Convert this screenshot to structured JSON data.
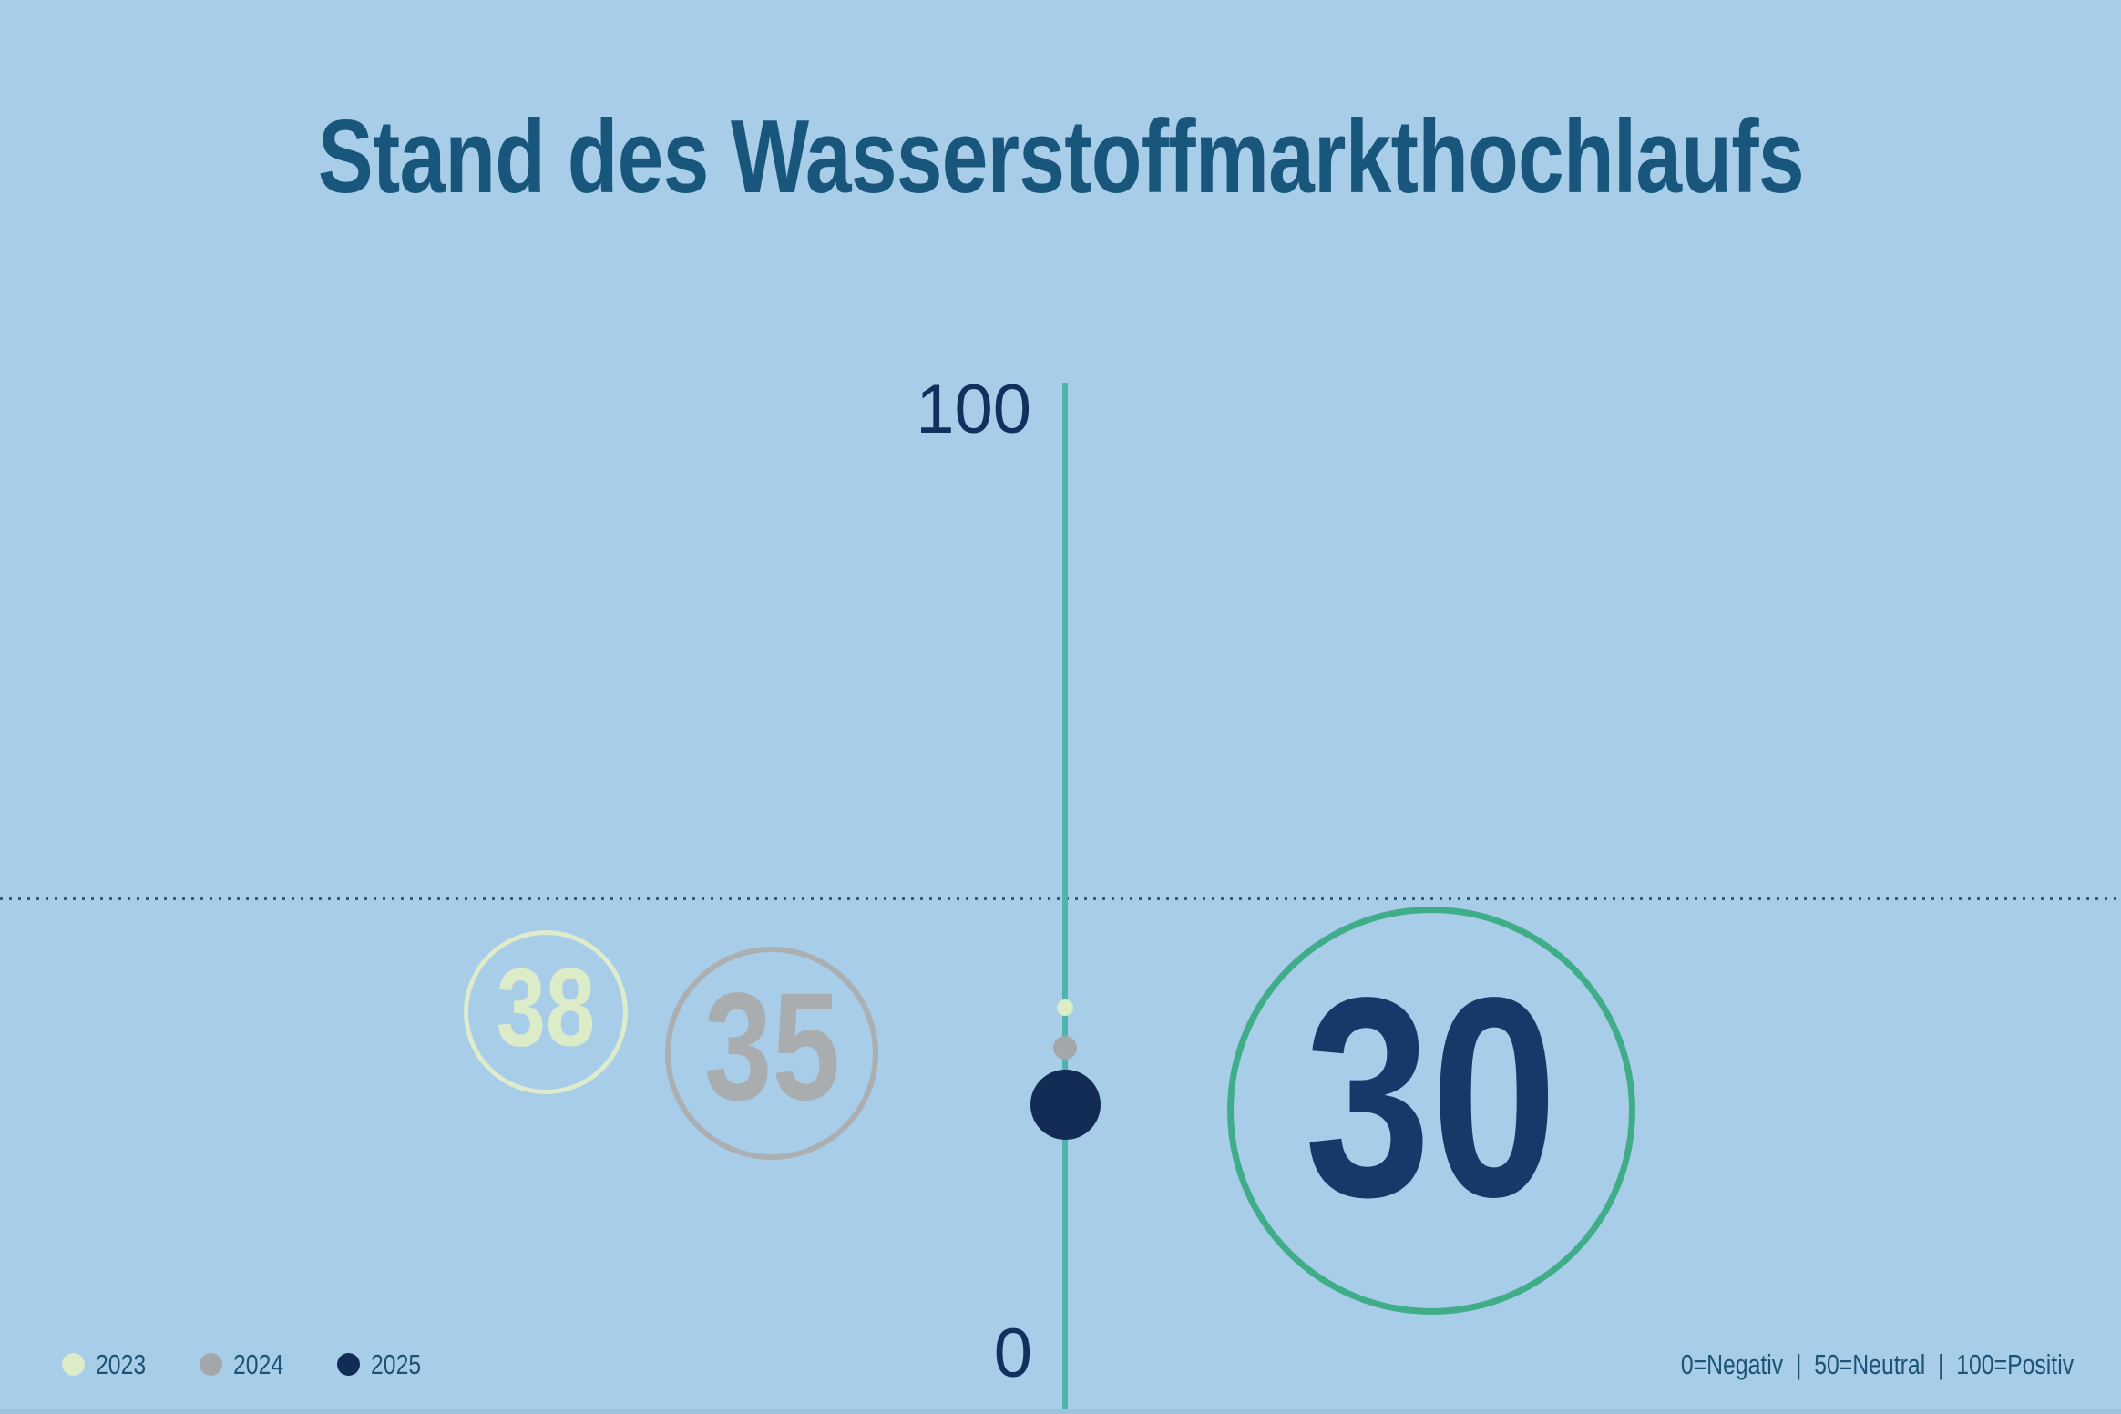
{
  "title": "Stand des Wasserstoffmarkthochlaufs",
  "axis": {
    "top_label": "100",
    "bottom_label": "0"
  },
  "legend": {
    "items": [
      {
        "label": "2023"
      },
      {
        "label": "2024"
      },
      {
        "label": "2025"
      }
    ]
  },
  "footer": {
    "scale_text": "0=Negativ  |  50=Neutral  |  100=Positiv"
  },
  "chart_data": {
    "type": "scatter",
    "title": "Stand des Wasserstoffmarkthochlaufs",
    "orientation": "vertical-axis-bubbles",
    "axis": {
      "min": 0,
      "max": 100,
      "tick_labels": [
        "0",
        "100"
      ],
      "neutral_line": 50,
      "grid": "dotted-line-at-50"
    },
    "scale_meaning": {
      "0": "Negativ",
      "50": "Neutral",
      "100": "Positiv"
    },
    "series": [
      {
        "name": "2023",
        "value": 38,
        "color": "#dcebc8"
      },
      {
        "name": "2024",
        "value": 35,
        "color": "#a9adb0"
      },
      {
        "name": "2025",
        "value": 30,
        "color": "#122c55",
        "ring_color": "#3fae88"
      }
    ],
    "legend_position": "bottom-left"
  },
  "colors": {
    "background": "#a8cde9",
    "title": "#18567b",
    "axis_line": "#4fb5ab",
    "axis_labels": "#12305e",
    "neutral_dotted_line": "#3a5a74",
    "bubble_2023": "#dcebc8",
    "bubble_2024": "#a9adb0",
    "bubble_2025_ring": "#3fae88",
    "bubble_2025_number": "#153a6a",
    "legend_text": "#1c5377"
  }
}
